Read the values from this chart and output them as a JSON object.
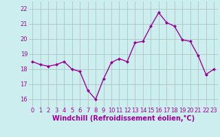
{
  "x": [
    0,
    1,
    2,
    3,
    4,
    5,
    6,
    7,
    8,
    9,
    10,
    11,
    12,
    13,
    14,
    15,
    16,
    17,
    18,
    19,
    20,
    21,
    22,
    23
  ],
  "y": [
    18.5,
    18.3,
    18.2,
    18.3,
    18.5,
    18.0,
    17.85,
    16.6,
    16.0,
    17.35,
    18.45,
    18.7,
    18.5,
    19.75,
    19.85,
    20.85,
    21.75,
    21.1,
    20.85,
    19.95,
    19.85,
    18.9,
    17.65,
    18.0
  ],
  "line_color": "#990099",
  "marker": "D",
  "markersize": 2,
  "linewidth": 1.0,
  "bg_color": "#cceeee",
  "grid_color": "#aabbbb",
  "text_color": "#990099",
  "xlabel": "Windchill (Refroidissement éolien,°C)",
  "xlabel_fontsize": 7,
  "tick_fontsize": 6,
  "ylim": [
    15.5,
    22.5
  ],
  "xlim": [
    -0.5,
    23.5
  ],
  "yticks": [
    16,
    17,
    18,
    19,
    20,
    21,
    22
  ],
  "xticks": [
    0,
    1,
    2,
    3,
    4,
    5,
    6,
    7,
    8,
    9,
    10,
    11,
    12,
    13,
    14,
    15,
    16,
    17,
    18,
    19,
    20,
    21,
    22,
    23
  ]
}
